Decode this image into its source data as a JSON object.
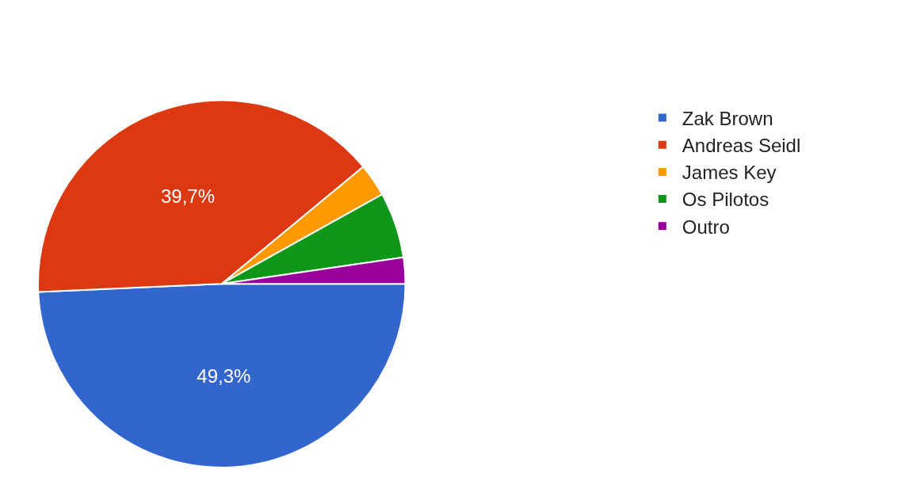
{
  "chart_data": {
    "type": "pie",
    "categories": [
      "Zak Brown",
      "Andreas Seidl",
      "James Key",
      "Os Pilotos",
      "Outro"
    ],
    "values": [
      49.3,
      39.7,
      2.9,
      5.8,
      2.3
    ],
    "colors": [
      "#3366cc",
      "#dc3912",
      "#ff9900",
      "#109618",
      "#990099"
    ],
    "value_labels": [
      "49,3%",
      "39,7%",
      null,
      null,
      null
    ],
    "legend": "right"
  }
}
